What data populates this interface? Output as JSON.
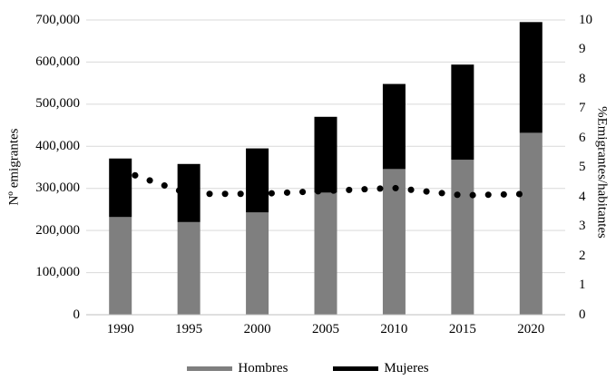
{
  "chart_data": {
    "type": "bar",
    "subtype": "stacked-bars-with-dotted-line",
    "title": "",
    "categories": [
      "1990",
      "1995",
      "2000",
      "2005",
      "2010",
      "2015",
      "2020"
    ],
    "bar_series": [
      {
        "name": "Hombres",
        "color": "#7f7f7f",
        "values": [
          232000,
          220000,
          243000,
          290000,
          346000,
          368000,
          432000
        ]
      },
      {
        "name": "Mujeres",
        "color": "#000000",
        "values": [
          139000,
          138000,
          152000,
          180000,
          202000,
          226000,
          263000
        ]
      }
    ],
    "line_series": {
      "name": "%Emigrantes/habitantes",
      "color": "#000000",
      "style": "round-dotted",
      "axis": "right",
      "values": [
        4.9,
        4.1,
        4.1,
        4.2,
        4.3,
        4.05,
        4.1
      ]
    },
    "left_axis": {
      "label": "Nº emigrantes",
      "min": 0,
      "max": 700000,
      "step": 100000,
      "tick_labels": [
        "0",
        "100,000",
        "200,000",
        "300,000",
        "400,000",
        "500,000",
        "600,000",
        "700,000"
      ]
    },
    "right_axis": {
      "label": "%Emigrantes/habitantes",
      "min": 0,
      "max": 10,
      "step": 1,
      "tick_labels": [
        "0",
        "1",
        "2",
        "3",
        "4",
        "5",
        "6",
        "7",
        "8",
        "9",
        "10"
      ]
    },
    "legend": [
      {
        "label": "Hombres",
        "color": "#7f7f7f"
      },
      {
        "label": "Mujeres",
        "color": "#000000"
      }
    ],
    "grid": true,
    "legend_position": "bottom",
    "colors": {
      "background": "#ffffff",
      "gridline": "#d9d9d9",
      "axis_line": "#bfbfbf",
      "text": "#000000"
    }
  }
}
